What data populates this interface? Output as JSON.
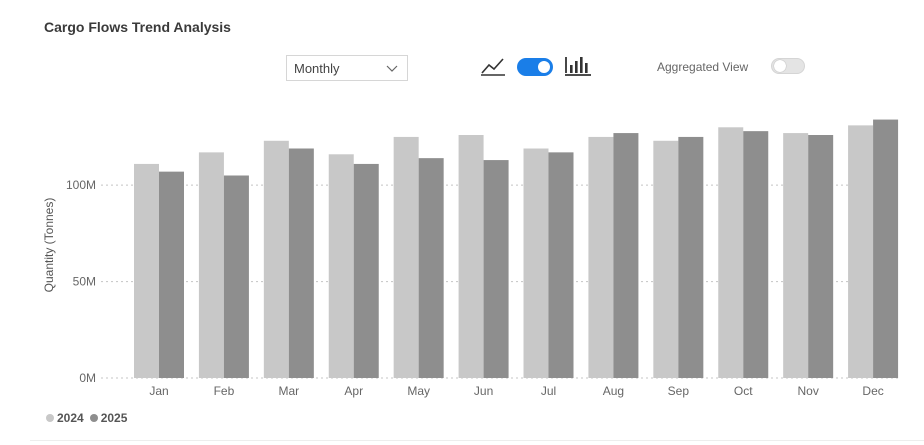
{
  "title": "Cargo Flows Trend Analysis",
  "dropdown": {
    "selected": "Monthly"
  },
  "icons": {
    "line_chart": "line-chart-icon",
    "bar_chart": "bar-chart-icon",
    "dropdown_arrow": "chevron-down-icon"
  },
  "toggles": {
    "chart_type_on": true,
    "aggregated_label": "Aggregated View",
    "aggregated_on": false
  },
  "colors": {
    "accent": "#1a7ee8",
    "series_2024": "#c8c8c8",
    "series_2025": "#8e8e8e"
  },
  "chart_data": {
    "type": "bar",
    "title": "",
    "xlabel": "",
    "ylabel": "Quantity (Tonnes)",
    "categories": [
      "Jan",
      "Feb",
      "Mar",
      "Apr",
      "May",
      "Jun",
      "Jul",
      "Aug",
      "Sep",
      "Oct",
      "Nov",
      "Dec"
    ],
    "series": [
      {
        "name": "2024",
        "values": [
          111000000,
          117000000,
          123000000,
          116000000,
          125000000,
          126000000,
          119000000,
          125000000,
          123000000,
          130000000,
          127000000,
          131000000
        ]
      },
      {
        "name": "2025",
        "values": [
          107000000,
          105000000,
          119000000,
          111000000,
          114000000,
          113000000,
          117000000,
          127000000,
          125000000,
          128000000,
          126000000,
          134000000
        ]
      }
    ],
    "yticks": [
      0,
      50000000,
      100000000
    ],
    "ytick_labels": [
      "0M",
      "50M",
      "100M"
    ],
    "ylim": [
      0,
      140000000
    ],
    "grid": true,
    "legend_position": "bottom-left"
  }
}
